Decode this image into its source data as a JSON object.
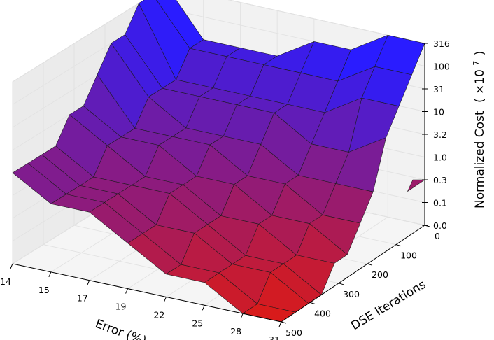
{
  "chart_data": {
    "type": "surface",
    "title": "",
    "xlabel": "Error (%)",
    "ylabel": "DSE Iterations",
    "zlabel_main": "Normalized Cost",
    "zlabel_unit": "( ×10",
    "zlabel_exp": "7",
    "zlabel_close": ")",
    "x_ticks": [
      "14",
      "15",
      "17",
      "19",
      "22",
      "25",
      "28",
      "31"
    ],
    "y_ticks": [
      "0",
      "100",
      "200",
      "300",
      "400",
      "500"
    ],
    "z_ticks": [
      "0.0",
      "0.1",
      "0.3",
      "1.0",
      "3.2",
      "10",
      "31",
      "100",
      "316"
    ],
    "x_range": [
      14,
      31
    ],
    "y_range": [
      0,
      500
    ],
    "grid": true,
    "colormap": {
      "low": "#d81b1b",
      "high": "#2a1cff"
    },
    "series": [
      {
        "x_index": 0,
        "x": 14,
        "z_by_iteration": [
          316,
          316,
          316,
          100,
          100,
          31,
          10,
          10,
          3.2,
          3.2,
          3.2,
          3.2
        ]
      },
      {
        "x_index": 1,
        "x": 15,
        "z_by_iteration": [
          31,
          31,
          10,
          10,
          10,
          3.2,
          3.2,
          3.2,
          1.0,
          1.0,
          1.0,
          1.0
        ]
      },
      {
        "x_index": 2,
        "x": 17,
        "z_by_iteration": [
          31,
          31,
          10,
          10,
          3.2,
          3.2,
          3.2,
          1.0,
          1.0,
          1.0,
          1.0,
          1.0
        ]
      },
      {
        "x_index": 3,
        "x": 19,
        "z_by_iteration": [
          31,
          31,
          10,
          10,
          3.2,
          3.2,
          1.0,
          1.0,
          1.0,
          0.3,
          0.3,
          0.3
        ]
      },
      {
        "x_index": 4,
        "x": 22,
        "z_by_iteration": [
          100,
          31,
          10,
          10,
          3.2,
          1.0,
          1.0,
          0.3,
          0.3,
          0.3,
          0.1,
          0.1
        ]
      },
      {
        "x_index": 5,
        "x": 25,
        "z_by_iteration": [
          100,
          31,
          10,
          3.2,
          1.0,
          1.0,
          0.3,
          0.3,
          0.1,
          0.1,
          0.1,
          0.1
        ]
      },
      {
        "x_index": 6,
        "x": 28,
        "z_by_iteration": [
          316,
          100,
          31,
          3.2,
          1.0,
          0.3,
          0.3,
          0.1,
          0.1,
          0.1,
          0.0,
          0.0
        ]
      },
      {
        "x_index": 7,
        "x": 31,
        "z_by_iteration": [
          316,
          100,
          31,
          10,
          1.0,
          0.3,
          0.1,
          0.1,
          0.0,
          0.0,
          0.0,
          0.0
        ]
      }
    ],
    "iterations": [
      0,
      45,
      90,
      135,
      180,
      225,
      270,
      315,
      360,
      405,
      450,
      500
    ],
    "ridge": {
      "x": 31,
      "iterations": [
        0,
        60
      ],
      "z": [
        0.3,
        0.3
      ]
    }
  }
}
